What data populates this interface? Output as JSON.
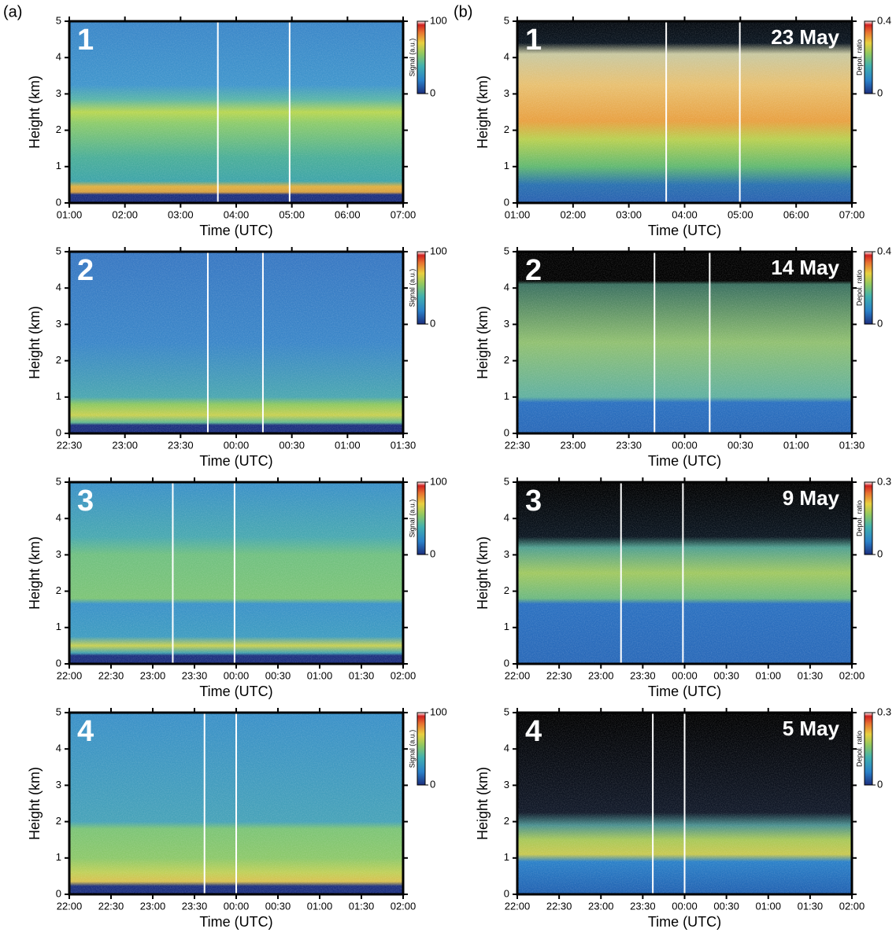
{
  "figure_labels": [
    "(a)",
    "(b)"
  ],
  "chart_data": [
    {
      "type": "heatmap",
      "title": "1",
      "xlabel": "Time (UTC)",
      "ylabel": "Height (km)",
      "categories": [
        "01:00",
        "02:00",
        "03:00",
        "04:00",
        "05:00",
        "06:00",
        "07:00"
      ],
      "ylim": [
        0,
        5
      ],
      "yticks": [
        0,
        1,
        2,
        3,
        4,
        5
      ],
      "colorbar": {
        "label": "Signal (a.u.)",
        "lim": [
          0,
          100
        ],
        "ticks": [
          0,
          100
        ]
      }
    },
    {
      "type": "heatmap",
      "title": "2",
      "xlabel": "Time (UTC)",
      "ylabel": "Height (km)",
      "categories": [
        "22:30",
        "23:00",
        "23:30",
        "00:00",
        "00:30",
        "01:00",
        "01:30"
      ],
      "ylim": [
        0,
        5
      ],
      "yticks": [
        0,
        1,
        2,
        3,
        4,
        5
      ],
      "colorbar": {
        "label": "Signal (a.u.)",
        "lim": [
          0,
          100
        ],
        "ticks": [
          0,
          100
        ]
      }
    },
    {
      "type": "heatmap",
      "title": "3",
      "xlabel": "Time (UTC)",
      "ylabel": "Height (km)",
      "categories": [
        "22:00",
        "22:30",
        "23:00",
        "23:30",
        "00:00",
        "00:30",
        "01:00",
        "01:30",
        "02:00"
      ],
      "ylim": [
        0,
        5
      ],
      "yticks": [
        0,
        1,
        2,
        3,
        4,
        5
      ],
      "colorbar": {
        "label": "Signal (a.u.)",
        "lim": [
          0,
          100
        ],
        "ticks": [
          0,
          100
        ]
      }
    },
    {
      "type": "heatmap",
      "title": "4",
      "xlabel": "Time (UTC)",
      "ylabel": "Height (km)",
      "categories": [
        "22:00",
        "22:30",
        "23:00",
        "23:30",
        "00:00",
        "00:30",
        "01:00",
        "01:30",
        "02:00"
      ],
      "ylim": [
        0,
        5
      ],
      "yticks": [
        0,
        1,
        2,
        3,
        4,
        5
      ],
      "colorbar": {
        "label": "Signal (a.u.)",
        "lim": [
          0,
          100
        ],
        "ticks": [
          0,
          100
        ]
      }
    },
    {
      "type": "heatmap",
      "title": "1",
      "annotation": "23 May",
      "xlabel": "Time (UTC)",
      "ylabel": "Height (km)",
      "categories": [
        "01:00",
        "02:00",
        "03:00",
        "04:00",
        "05:00",
        "06:00",
        "07:00"
      ],
      "ylim": [
        0,
        5
      ],
      "yticks": [
        0,
        1,
        2,
        3,
        4,
        5
      ],
      "colorbar": {
        "label": "Depol. ratio",
        "lim": [
          0,
          0.4
        ],
        "ticks": [
          0,
          0.4
        ]
      }
    },
    {
      "type": "heatmap",
      "title": "2",
      "annotation": "14 May",
      "xlabel": "Time (UTC)",
      "ylabel": "Height (km)",
      "categories": [
        "22:30",
        "23:00",
        "23:30",
        "00:00",
        "00:30",
        "01:00",
        "01:30"
      ],
      "ylim": [
        0,
        5
      ],
      "yticks": [
        0,
        1,
        2,
        3,
        4,
        5
      ],
      "colorbar": {
        "label": "Depol. ratio",
        "lim": [
          0,
          0.4
        ],
        "ticks": [
          0,
          0.4
        ]
      }
    },
    {
      "type": "heatmap",
      "title": "3",
      "annotation": "9 May",
      "xlabel": "Time (UTC)",
      "ylabel": "Height (km)",
      "categories": [
        "22:00",
        "22:30",
        "23:00",
        "23:30",
        "00:00",
        "00:30",
        "01:00",
        "01:30",
        "02:00"
      ],
      "ylim": [
        0,
        5
      ],
      "yticks": [
        0,
        1,
        2,
        3,
        4,
        5
      ],
      "colorbar": {
        "label": "Depol. ratio",
        "lim": [
          0,
          0.3
        ],
        "ticks": [
          0,
          0.3
        ]
      }
    },
    {
      "type": "heatmap",
      "title": "4",
      "annotation": "5 May",
      "xlabel": "Time (UTC)",
      "ylabel": "Height (km)",
      "categories": [
        "22:00",
        "22:30",
        "23:00",
        "23:30",
        "00:00",
        "00:30",
        "01:00",
        "01:30",
        "02:00"
      ],
      "ylim": [
        0,
        5
      ],
      "yticks": [
        0,
        1,
        2,
        3,
        4,
        5
      ],
      "colorbar": {
        "label": "Depol. ratio",
        "lim": [
          0,
          0.3
        ],
        "ticks": [
          0,
          0.3
        ]
      }
    }
  ]
}
